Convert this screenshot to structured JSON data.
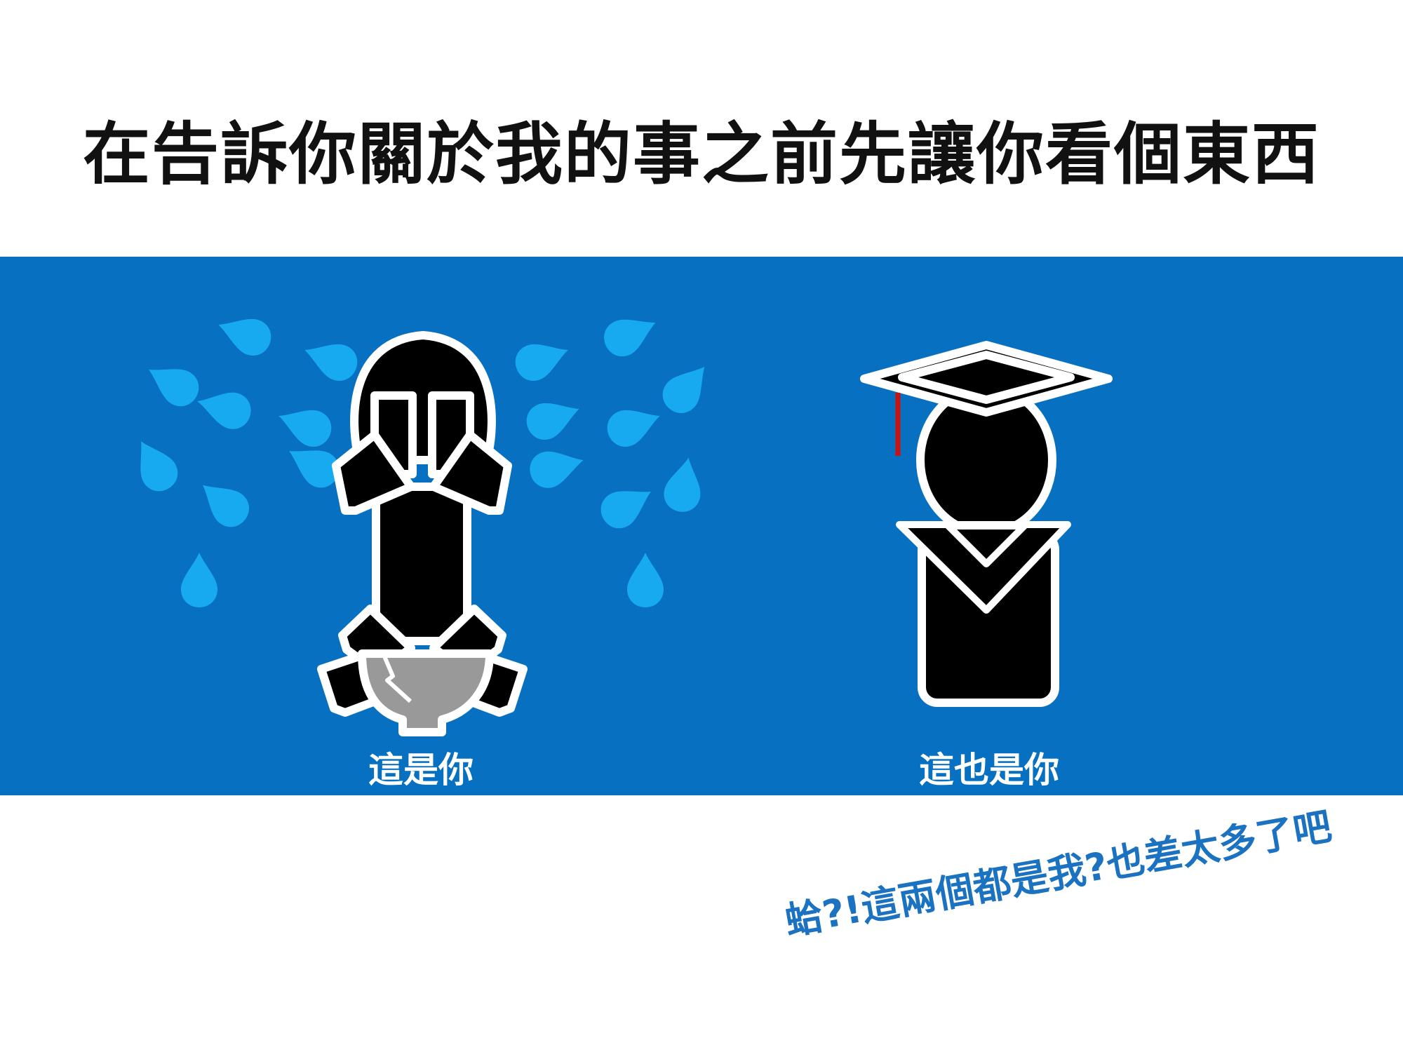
{
  "title": "在告訴你關於我的事之前先讓你看個東西",
  "captions": {
    "left": "這是你",
    "right": "這也是你"
  },
  "remark": "蛤?!這兩個都是我?也差太多了吧",
  "icons": {
    "left": "crying-person-icon",
    "right": "graduate-icon",
    "drops": "tear-drop-icon"
  },
  "colors": {
    "band": "#0770c1",
    "figure": "#000000",
    "outline": "#ffffff",
    "tears": "#18aaf0",
    "bowl": "#999999",
    "tassel": "#cc1111",
    "remark": "#1a72c0"
  }
}
